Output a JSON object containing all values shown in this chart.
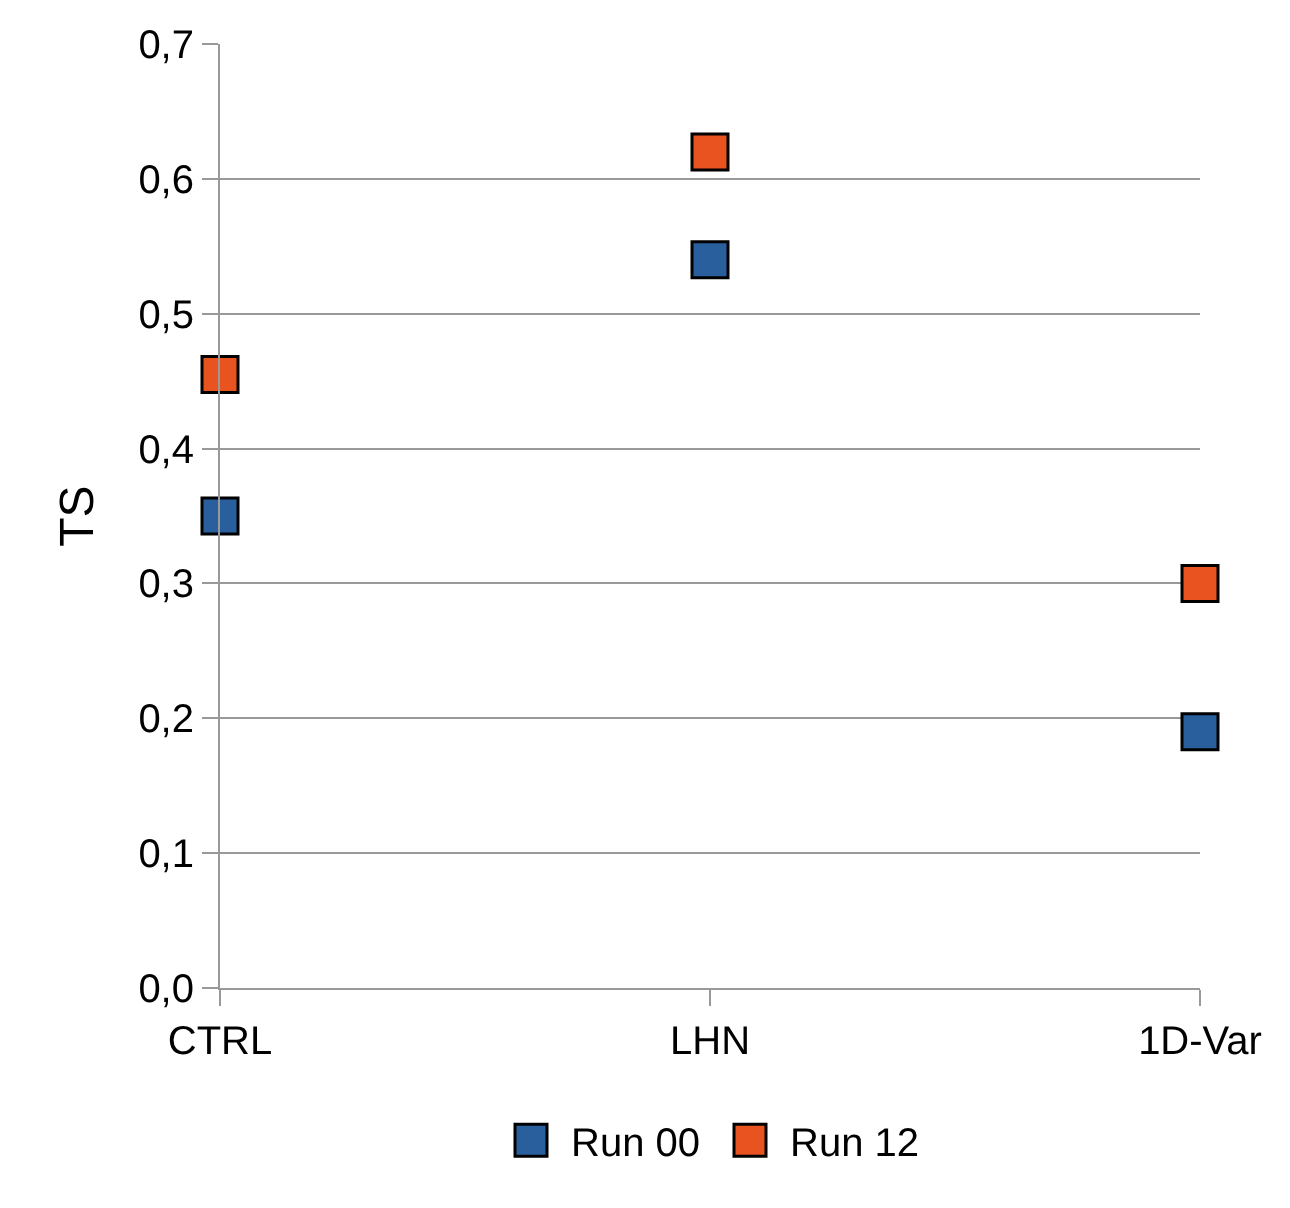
{
  "chart_data": {
    "type": "scatter",
    "ylabel": "TS",
    "categories": [
      "CTRL",
      "LHN",
      "1D-Var"
    ],
    "series": [
      {
        "name": "Run 00",
        "color": "#2a5f9e",
        "values": [
          0.35,
          0.54,
          0.19
        ]
      },
      {
        "name": "Run 12",
        "color": "#e8531f",
        "values": [
          0.455,
          0.62,
          0.3
        ]
      }
    ],
    "ylim": [
      0,
      0.7
    ],
    "yticks": [
      {
        "value": 0,
        "label": "0,0"
      },
      {
        "value": 0.1,
        "label": "0,1"
      },
      {
        "value": 0.2,
        "label": "0,2"
      },
      {
        "value": 0.3,
        "label": "0,3"
      },
      {
        "value": 0.4,
        "label": "0,4"
      },
      {
        "value": 0.5,
        "label": "0,5"
      },
      {
        "value": 0.6,
        "label": "0,6"
      },
      {
        "value": 0.7,
        "label": "0,7"
      }
    ],
    "grid": "y",
    "legend": "bottom",
    "marker": "square"
  }
}
